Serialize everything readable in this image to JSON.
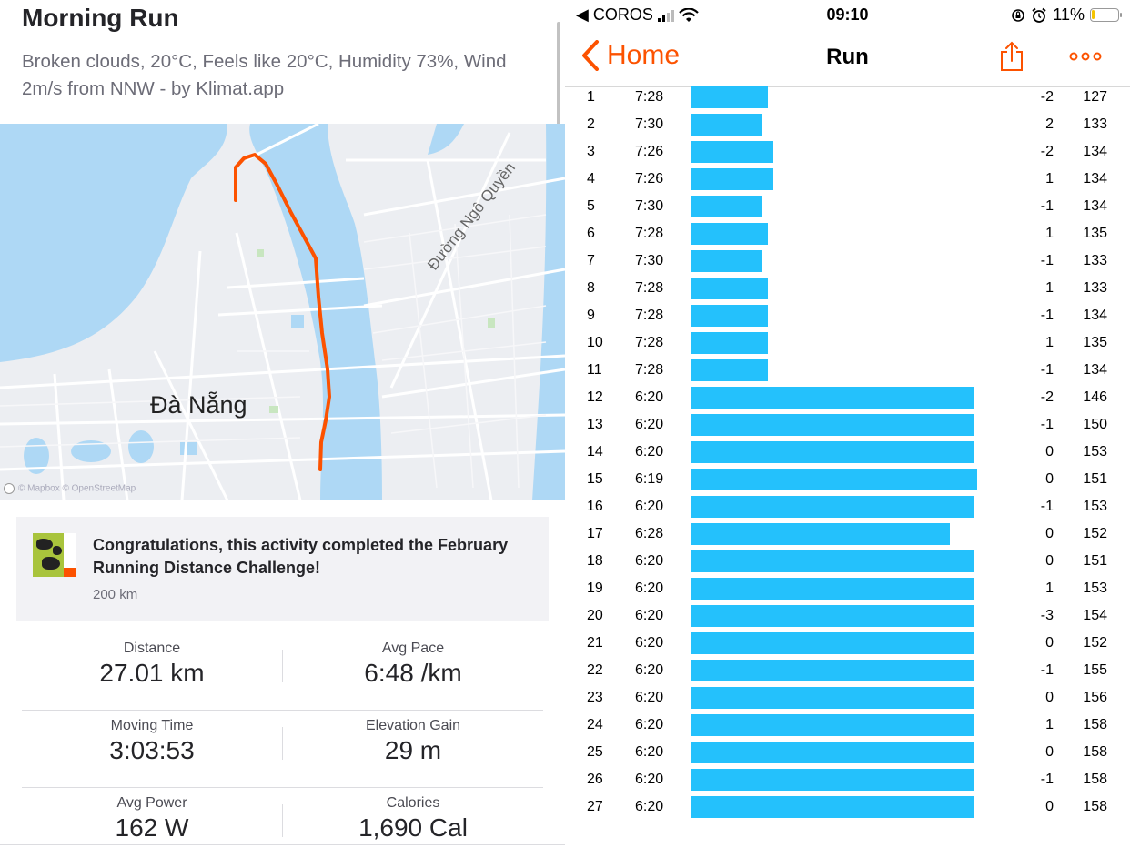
{
  "activity": {
    "title": "Morning Run",
    "description": "Broken clouds, 20°C, Feels like 20°C, Humidity 73%, Wind 2m/s from NNW - by Klimat.app"
  },
  "map": {
    "city_label": "Đà Nẵng",
    "street_label": "Đường Ngô Quyền",
    "attribution": "© Mapbox © OpenStreetMap",
    "route_color": "#fc5200",
    "water_color": "#aed8f5"
  },
  "challenge": {
    "text": "Congratulations, this activity completed the February Running Distance Challenge!",
    "subtext": "200 km",
    "badge_icon": "challenge-badge-icon"
  },
  "stats": [
    [
      {
        "label": "Distance",
        "value": "27.01 km"
      },
      {
        "label": "Avg Pace",
        "value": "6:48 /km"
      }
    ],
    [
      {
        "label": "Moving Time",
        "value": "3:03:53"
      },
      {
        "label": "Elevation Gain",
        "value": "29 m"
      }
    ],
    [
      {
        "label": "Avg Power",
        "value": "162 W"
      },
      {
        "label": "Calories",
        "value": "1,690 Cal"
      }
    ]
  ],
  "statusbar": {
    "back_app": "◀ COROS",
    "time": "09:10",
    "battery": "11%",
    "battery_level": 0.11
  },
  "navbar": {
    "back_label": "Home",
    "title": "Run",
    "accent_color": "#fc5200"
  },
  "laps": {
    "bar_color": "#24c1fc",
    "rows": [
      {
        "num": "1",
        "pace": "7:28",
        "elev": "-2",
        "hr": "127"
      },
      {
        "num": "2",
        "pace": "7:30",
        "elev": "2",
        "hr": "133"
      },
      {
        "num": "3",
        "pace": "7:26",
        "elev": "-2",
        "hr": "134"
      },
      {
        "num": "4",
        "pace": "7:26",
        "elev": "1",
        "hr": "134"
      },
      {
        "num": "5",
        "pace": "7:30",
        "elev": "-1",
        "hr": "134"
      },
      {
        "num": "6",
        "pace": "7:28",
        "elev": "1",
        "hr": "135"
      },
      {
        "num": "7",
        "pace": "7:30",
        "elev": "-1",
        "hr": "133"
      },
      {
        "num": "8",
        "pace": "7:28",
        "elev": "1",
        "hr": "133"
      },
      {
        "num": "9",
        "pace": "7:28",
        "elev": "-1",
        "hr": "134"
      },
      {
        "num": "10",
        "pace": "7:28",
        "elev": "1",
        "hr": "135"
      },
      {
        "num": "11",
        "pace": "7:28",
        "elev": "-1",
        "hr": "134"
      },
      {
        "num": "12",
        "pace": "6:20",
        "elev": "-2",
        "hr": "146"
      },
      {
        "num": "13",
        "pace": "6:20",
        "elev": "-1",
        "hr": "150"
      },
      {
        "num": "14",
        "pace": "6:20",
        "elev": "0",
        "hr": "153"
      },
      {
        "num": "15",
        "pace": "6:19",
        "elev": "0",
        "hr": "151"
      },
      {
        "num": "16",
        "pace": "6:20",
        "elev": "-1",
        "hr": "153"
      },
      {
        "num": "17",
        "pace": "6:28",
        "elev": "0",
        "hr": "152"
      },
      {
        "num": "18",
        "pace": "6:20",
        "elev": "0",
        "hr": "151"
      },
      {
        "num": "19",
        "pace": "6:20",
        "elev": "1",
        "hr": "153"
      },
      {
        "num": "20",
        "pace": "6:20",
        "elev": "-3",
        "hr": "154"
      },
      {
        "num": "21",
        "pace": "6:20",
        "elev": "0",
        "hr": "152"
      },
      {
        "num": "22",
        "pace": "6:20",
        "elev": "-1",
        "hr": "155"
      },
      {
        "num": "23",
        "pace": "6:20",
        "elev": "0",
        "hr": "156"
      },
      {
        "num": "24",
        "pace": "6:20",
        "elev": "1",
        "hr": "158"
      },
      {
        "num": "25",
        "pace": "6:20",
        "elev": "0",
        "hr": "158"
      },
      {
        "num": "26",
        "pace": "6:20",
        "elev": "-1",
        "hr": "158"
      },
      {
        "num": "27",
        "pace": "6:20",
        "elev": "0",
        "hr": "158"
      }
    ]
  }
}
